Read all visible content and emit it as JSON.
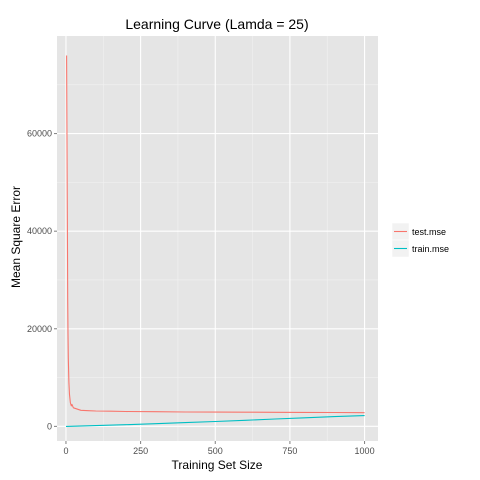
{
  "chart_data": {
    "type": "line",
    "title": "Learning Curve (Lamda = 25)",
    "xlabel": "Training Set Size",
    "ylabel": "Mean Square Error",
    "xlim": [
      -30,
      1045
    ],
    "ylim": [
      -3000,
      80000
    ],
    "xticks": [
      0,
      250,
      500,
      750,
      1000
    ],
    "yticks": [
      0,
      20000,
      40000,
      60000
    ],
    "xtick_labels": [
      "0",
      "250",
      "500",
      "750",
      "1000"
    ],
    "ytick_labels": [
      "0",
      "20000",
      "40000",
      "60000"
    ],
    "grid": true,
    "legend_position": "right",
    "series": [
      {
        "name": "test.mse",
        "color": "#F8766D",
        "x": [
          2,
          3,
          4,
          5,
          6,
          7,
          8,
          10,
          12,
          15,
          18,
          20,
          25,
          30,
          40,
          50,
          75,
          100,
          150,
          200,
          300,
          400,
          500,
          600,
          700,
          800,
          900,
          1000
        ],
        "y": [
          76000,
          62000,
          48000,
          36000,
          26000,
          19000,
          14000,
          9000,
          6500,
          4800,
          4200,
          4500,
          3800,
          3700,
          3500,
          3300,
          3200,
          3150,
          3100,
          3050,
          3000,
          2950,
          2920,
          2900,
          2880,
          2860,
          2850,
          2800
        ]
      },
      {
        "name": "train.mse",
        "color": "#00BFC4",
        "x": [
          0,
          100,
          200,
          300,
          400,
          500,
          600,
          700,
          800,
          900,
          1000
        ],
        "y": [
          0,
          150,
          350,
          550,
          780,
          1000,
          1250,
          1500,
          1750,
          2000,
          2200
        ]
      }
    ]
  }
}
